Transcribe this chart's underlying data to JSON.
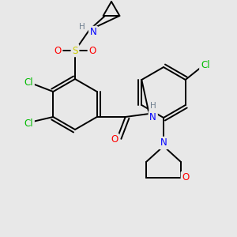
{
  "bg_color": "#e8e8e8",
  "atom_colors": {
    "C": "#000000",
    "H": "#708090",
    "N": "#0000ff",
    "O": "#ff0000",
    "S": "#cccc00",
    "Cl": "#00bb00"
  },
  "bond_color": "#000000"
}
